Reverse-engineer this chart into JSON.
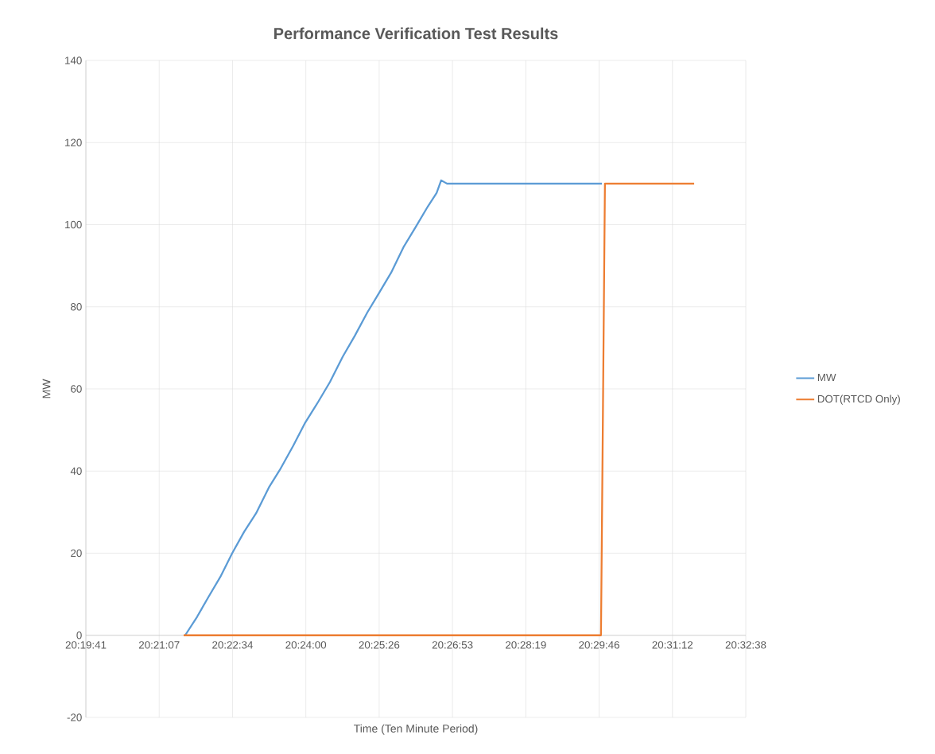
{
  "chart_data": {
    "type": "line",
    "title": "Performance Verification Test Results",
    "xlabel": "Time (Ten Minute Period)",
    "ylabel": "MW",
    "xlim": [
      20.328,
      20.544
    ],
    "xticks": [
      {
        "value": 20.328,
        "label": "20:19:41"
      },
      {
        "value": 20.352,
        "label": "20:21:07"
      },
      {
        "value": 20.376,
        "label": "20:22:34"
      },
      {
        "value": 20.4,
        "label": "20:24:00"
      },
      {
        "value": 20.424,
        "label": "20:25:26"
      },
      {
        "value": 20.448,
        "label": "20:26:53"
      },
      {
        "value": 20.472,
        "label": "20:28:19"
      },
      {
        "value": 20.496,
        "label": "20:29:46"
      },
      {
        "value": 20.52,
        "label": "20:31:12"
      },
      {
        "value": 20.544,
        "label": "20:32:38"
      }
    ],
    "ylim": [
      -20,
      140
    ],
    "yticks": [
      -20,
      0,
      20,
      40,
      60,
      80,
      100,
      120,
      140
    ],
    "grid": true,
    "legend": "right",
    "marker": "none",
    "series": [
      {
        "name": "MW",
        "color": "#5b9bd5",
        "x": [
          20.3605,
          20.3644,
          20.3681,
          20.372,
          20.3759,
          20.3798,
          20.3837,
          20.3879,
          20.3915,
          20.3959,
          20.3998,
          20.404,
          20.4079,
          20.4121,
          20.416,
          20.4201,
          20.424,
          20.4279,
          20.4321,
          20.436,
          20.4399,
          20.4428,
          20.4443,
          20.4462,
          20.4969
        ],
        "values": [
          0,
          4.5,
          9.3,
          14.2,
          20,
          25.2,
          29.7,
          36,
          40.3,
          46.2,
          51.8,
          56.8,
          61.7,
          67.9,
          72.9,
          78.6,
          83.4,
          88.3,
          94.7,
          99.5,
          104.4,
          107.7,
          110.8,
          110,
          110
        ]
      },
      {
        "name": "DOT(RTCD Only)",
        "color": "#ed7d31",
        "x": [
          20.36,
          20.4966,
          20.4979,
          20.5271
        ],
        "values": [
          0,
          0,
          110,
          110
        ]
      }
    ]
  }
}
